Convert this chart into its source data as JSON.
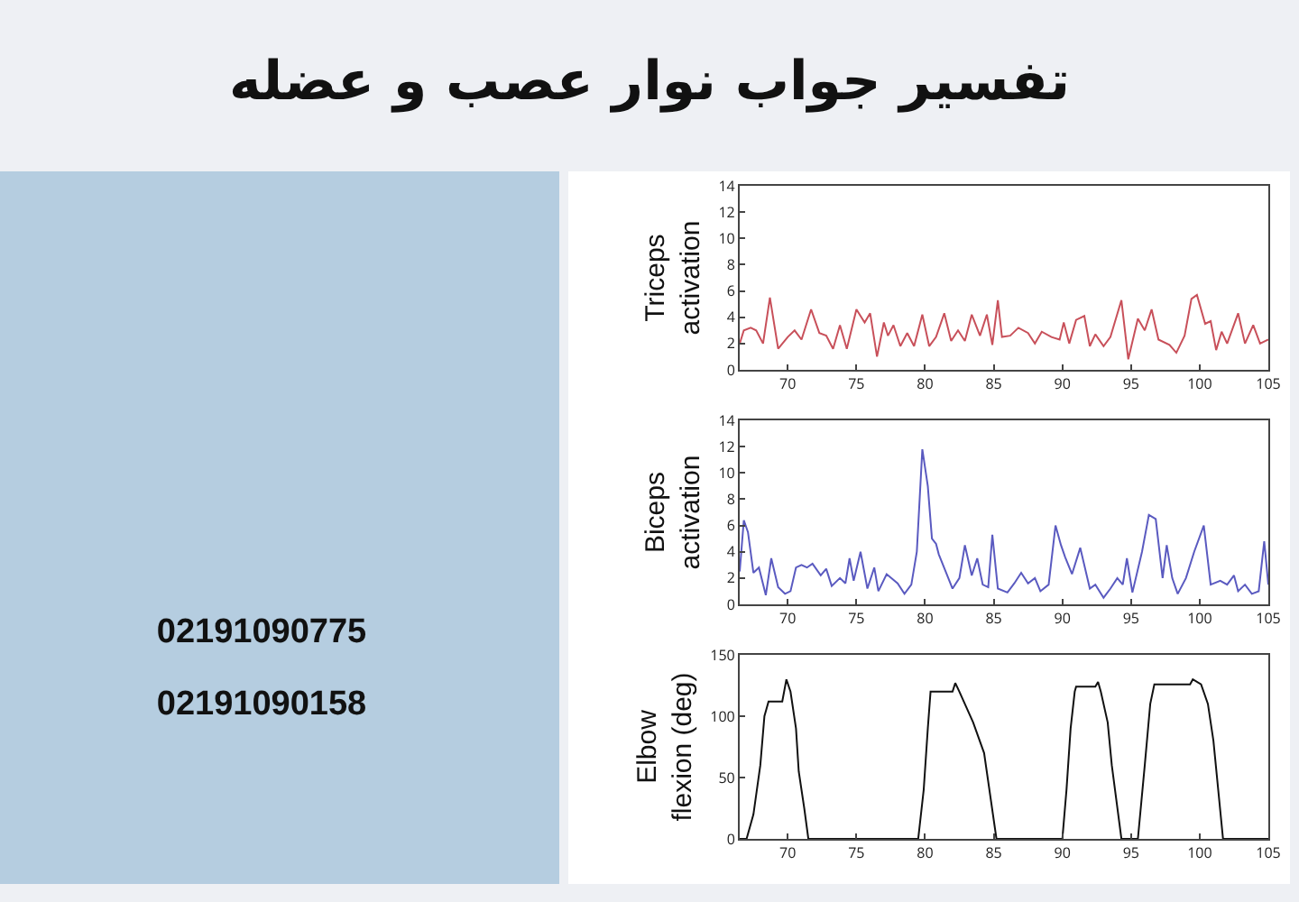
{
  "chart_data": [
    {
      "type": "line",
      "title": "تفسیر جواب نوار عصب و عضله",
      "ylabel": "Triceps activation",
      "annotations": [
        "02191090775",
        "02191090158"
      ],
      "xlim": [
        66.5,
        105
      ],
      "xticks": [
        70,
        75,
        80,
        85,
        90,
        95,
        100,
        105
      ],
      "ylim": [
        0,
        14
      ],
      "yticks": [
        0,
        2,
        4,
        6,
        8,
        10,
        12,
        14
      ],
      "x": [
        66.5,
        66.8,
        67.3,
        67.7,
        68.2,
        68.7,
        69.3,
        70,
        70.5,
        71,
        71.7,
        72.3,
        72.8,
        73.3,
        73.8,
        74.3,
        75,
        75.6,
        76,
        76.5,
        77,
        77.3,
        77.7,
        78.2,
        78.7,
        79.2,
        79.8,
        80.3,
        80.8,
        81.4,
        81.9,
        82.4,
        82.9,
        83.4,
        84,
        84.5,
        84.9,
        85.3,
        85.6,
        86.2,
        86.8,
        87.5,
        88,
        88.5,
        89.2,
        89.8,
        90.1,
        90.5,
        91,
        91.6,
        92,
        92.4,
        93,
        93.5,
        94.3,
        94.8,
        95.5,
        96,
        96.5,
        97,
        97.8,
        98.3,
        98.9,
        99.4,
        99.8,
        100.4,
        100.8,
        101.2,
        101.6,
        102,
        102.8,
        103.3,
        103.9,
        104.4,
        105
      ],
      "series": [
        {
          "color": "#c8505a",
          "values": [
            2.0,
            3.0,
            3.2,
            3.0,
            2.0,
            5.5,
            1.6,
            2.5,
            3.0,
            2.3,
            4.6,
            2.8,
            2.6,
            1.6,
            3.4,
            1.6,
            4.6,
            3.6,
            4.3,
            1.0,
            3.6,
            2.6,
            3.4,
            1.8,
            2.8,
            1.8,
            4.2,
            1.8,
            2.5,
            4.3,
            2.2,
            3.0,
            2.2,
            4.2,
            2.6,
            4.2,
            1.9,
            5.3,
            2.5,
            2.6,
            3.2,
            2.8,
            2.0,
            2.9,
            2.5,
            2.3,
            3.6,
            2.0,
            3.8,
            4.1,
            1.8,
            2.7,
            1.8,
            2.5,
            5.3,
            0.8,
            3.9,
            3.0,
            4.6,
            2.3,
            1.9,
            1.3,
            2.6,
            5.4,
            5.7,
            3.5,
            3.7,
            1.5,
            2.9,
            2.0,
            4.3,
            2.0,
            3.4,
            2.0,
            2.3
          ]
        }
      ]
    },
    {
      "type": "line",
      "ylabel": "Biceps activation",
      "xlim": [
        66.5,
        105
      ],
      "xticks": [
        70,
        75,
        80,
        85,
        90,
        95,
        100,
        105
      ],
      "ylim": [
        0,
        14
      ],
      "yticks": [
        0,
        2,
        4,
        6,
        8,
        10,
        12,
        14
      ],
      "x": [
        66.5,
        66.8,
        67.1,
        67.5,
        67.9,
        68.4,
        68.8,
        69.3,
        69.8,
        70.2,
        70.6,
        71,
        71.4,
        71.8,
        72.4,
        72.8,
        73.2,
        73.8,
        74.2,
        74.5,
        74.8,
        75.3,
        75.8,
        76.3,
        76.6,
        77.2,
        78,
        78.5,
        79,
        79.4,
        79.8,
        80.2,
        80.5,
        80.8,
        81,
        81.5,
        82,
        82.5,
        82.9,
        83.4,
        83.8,
        84.2,
        84.6,
        84.9,
        85.3,
        86,
        86.5,
        87,
        87.5,
        88,
        88.4,
        89,
        89.5,
        89.9,
        90.2,
        90.7,
        91.3,
        92,
        92.4,
        93,
        93.5,
        94,
        94.4,
        94.7,
        95.1,
        95.8,
        96.3,
        96.8,
        97.3,
        97.6,
        98,
        98.4,
        99,
        99.6,
        100.3,
        100.8,
        101.5,
        102,
        102.5,
        102.8,
        103.3,
        103.8,
        104.3,
        104.7,
        105
      ],
      "series": [
        {
          "color": "#5a5ac0",
          "values": [
            2.5,
            6.4,
            5.5,
            2.4,
            2.8,
            0.7,
            3.5,
            1.3,
            0.8,
            1.0,
            2.8,
            3.0,
            2.8,
            3.1,
            2.2,
            2.7,
            1.4,
            2.0,
            1.6,
            3.5,
            1.8,
            4.0,
            1.2,
            2.8,
            1.0,
            2.3,
            1.6,
            0.8,
            1.5,
            4.0,
            11.8,
            9.0,
            5.0,
            4.6,
            3.8,
            2.5,
            1.2,
            2.0,
            4.5,
            2.2,
            3.5,
            1.5,
            1.3,
            5.3,
            1.2,
            0.9,
            1.6,
            2.4,
            1.6,
            2.0,
            1.0,
            1.5,
            6.0,
            4.5,
            3.6,
            2.3,
            4.3,
            1.2,
            1.5,
            0.5,
            1.2,
            2.0,
            1.5,
            3.5,
            0.9,
            4.0,
            6.8,
            6.5,
            2.0,
            4.5,
            2.0,
            0.8,
            2.0,
            4.0,
            6.0,
            1.5,
            1.8,
            1.5,
            2.2,
            1.0,
            1.5,
            0.8,
            1.0,
            4.8,
            1.5
          ]
        }
      ]
    },
    {
      "type": "line",
      "ylabel": "Elbow flexion (deg)",
      "xlim": [
        66.5,
        105
      ],
      "xticks": [
        70,
        75,
        80,
        85,
        90,
        95,
        100,
        105
      ],
      "ylim": [
        0,
        150
      ],
      "yticks": [
        0,
        50,
        100,
        150
      ],
      "x": [
        66.5,
        67,
        67.5,
        68,
        68.3,
        68.6,
        69.6,
        69.9,
        70.2,
        70.6,
        70.8,
        71.2,
        71.5,
        79.5,
        79.9,
        80.2,
        80.4,
        82,
        82.2,
        82.5,
        83.5,
        84.3,
        85.2,
        90,
        90.3,
        90.6,
        90.9,
        91,
        92.4,
        92.6,
        92.8,
        93.3,
        93.6,
        94.3,
        95.5,
        96,
        96.4,
        96.7,
        99.3,
        99.5,
        100.1,
        100.6,
        101,
        101.7,
        105
      ],
      "series": [
        {
          "color": "#111111",
          "values": [
            0,
            0,
            20,
            60,
            100,
            112,
            112,
            130,
            120,
            90,
            55,
            25,
            0,
            0,
            40,
            90,
            120,
            120,
            127,
            120,
            95,
            70,
            0,
            0,
            40,
            90,
            120,
            124,
            124,
            128,
            120,
            95,
            60,
            0,
            0,
            60,
            110,
            126,
            126,
            130,
            126,
            110,
            80,
            0,
            0
          ]
        }
      ]
    }
  ]
}
